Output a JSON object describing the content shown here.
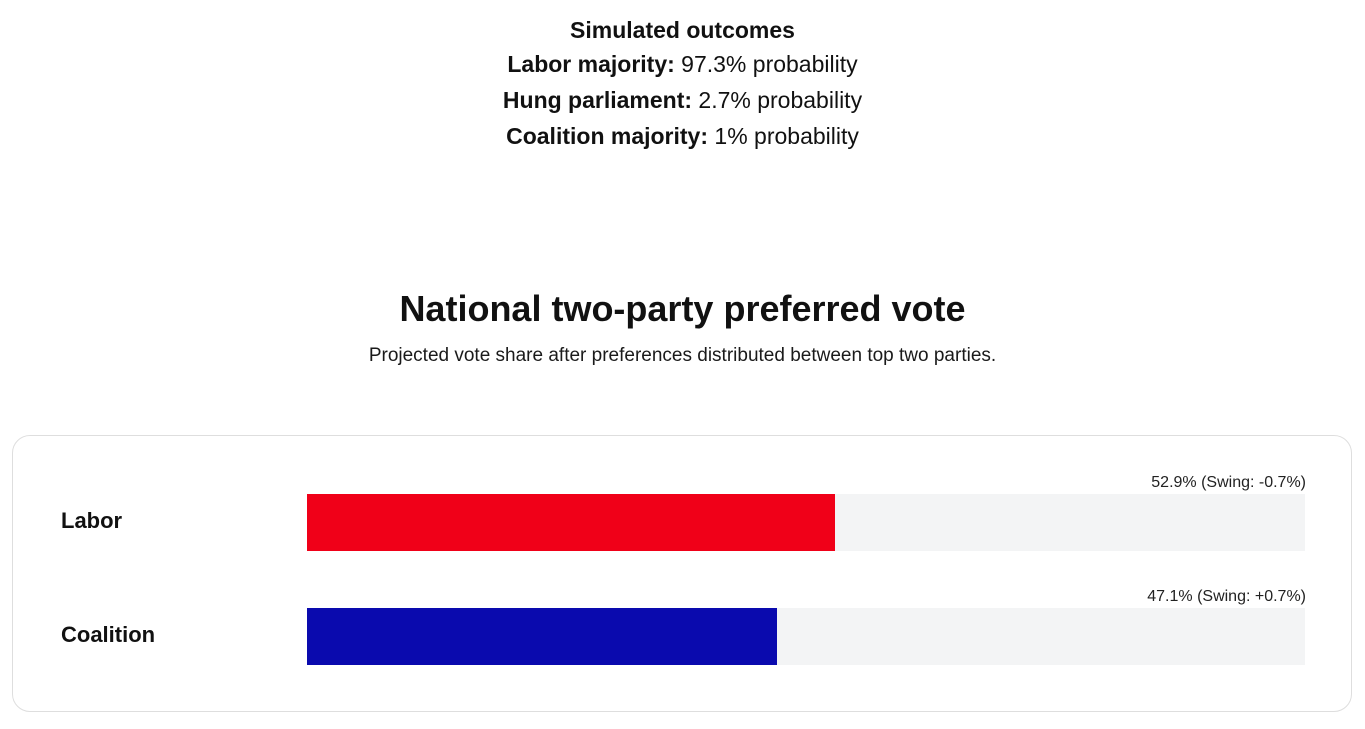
{
  "outcomes": {
    "title": "Simulated outcomes",
    "items": [
      {
        "label": "Labor majority:",
        "value": "97.3% probability"
      },
      {
        "label": "Hung parliament:",
        "value": "2.7% probability"
      },
      {
        "label": "Coalition majority:",
        "value": "1% probability"
      }
    ]
  },
  "section": {
    "title": "National two-party preferred vote",
    "subtitle": "Projected vote share after preferences distributed between top two parties."
  },
  "colors": {
    "labor": "#f00018",
    "coalition": "#0a0aae",
    "track": "#f3f4f5"
  },
  "chart_data": {
    "type": "bar",
    "orientation": "horizontal",
    "title": "National two-party preferred vote",
    "xlim": [
      0,
      100
    ],
    "categories": [
      "Labor",
      "Coalition"
    ],
    "values": [
      52.9,
      47.1
    ],
    "value_labels": [
      "52.9% (Swing: -0.7%)",
      "47.1% (Swing: +0.7%)"
    ],
    "swing": [
      -0.7,
      0.7
    ]
  }
}
